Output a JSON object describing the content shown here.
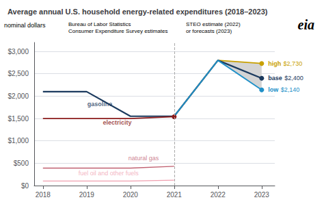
{
  "chart_data": {
    "type": "line",
    "title": "Average annual U.S. household energy-related expenditures (2018–2023)",
    "ylabel": "nominal dollars",
    "notes": [
      "Bureau of Labor Statistics\nConsumer Expenditure Survey estimates",
      "STEO estimate (2022)\nor forecasts (2023)"
    ],
    "logo": "eia",
    "xlim": [
      2017.8,
      2023.3
    ],
    "xticks": [
      2018,
      2019,
      2020,
      2021,
      2022,
      2023
    ],
    "ylim": [
      0,
      3200
    ],
    "yticks": [
      {
        "value": 0,
        "label": "$0"
      },
      {
        "value": 500,
        "label": "$500"
      },
      {
        "value": 1000,
        "label": "$1,000"
      },
      {
        "value": 1500,
        "label": "$1,500"
      },
      {
        "value": 2000,
        "label": "$2,000"
      },
      {
        "value": 2500,
        "label": "$2,500"
      },
      {
        "value": 3000,
        "label": "$3,000"
      }
    ],
    "grid": true,
    "vline": {
      "x": 2021,
      "line_style": "dashed",
      "color": "#aaaaaa"
    },
    "band": {
      "between": [
        "high",
        "low"
      ],
      "color": "#d4d4d4"
    },
    "series": [
      {
        "name": "gasoline",
        "color": "#1b3a5e",
        "x": [
          2018,
          2019,
          2020,
          2021
        ],
        "values": [
          2100,
          2100,
          1550,
          1550
        ],
        "label_x": 2019.3,
        "label_y": 1760
      },
      {
        "name": "electricity",
        "color": "#8b1a1a",
        "x": [
          2018,
          2019,
          2020,
          2021
        ],
        "values": [
          1500,
          1500,
          1500,
          1540
        ],
        "label_x": 2019.7,
        "label_y": 1340,
        "marker": "circle"
      },
      {
        "name": "natural gas",
        "color": "#c06070",
        "x": [
          2018,
          2019,
          2020,
          2021
        ],
        "values": [
          390,
          390,
          390,
          430
        ],
        "label_x": 2020.3,
        "label_y": 540
      },
      {
        "name": "fuel oil and other fuels",
        "color": "#f0a0b0",
        "x": [
          2018,
          2019,
          2020,
          2021
        ],
        "values": [
          100,
          100,
          100,
          120
        ],
        "label_x": 2019.5,
        "label_y": 205
      },
      {
        "name": "high",
        "color": "#c8a000",
        "x": [
          2021,
          2022,
          2023
        ],
        "values": [
          1550,
          2800,
          2730
        ],
        "value_labels": [
          null,
          null,
          "$2,730"
        ],
        "marker": "circle"
      },
      {
        "name": "base",
        "color": "#1b3a5e",
        "x": [
          2021,
          2022,
          2023
        ],
        "values": [
          1550,
          2800,
          2400
        ],
        "value_labels": [
          null,
          null,
          "$2,400"
        ],
        "marker": "circle"
      },
      {
        "name": "low",
        "color": "#2090c8",
        "x": [
          2021,
          2022,
          2023
        ],
        "values": [
          1550,
          2800,
          2140
        ],
        "value_labels": [
          null,
          null,
          "$2,140"
        ],
        "marker": "circle"
      }
    ]
  }
}
